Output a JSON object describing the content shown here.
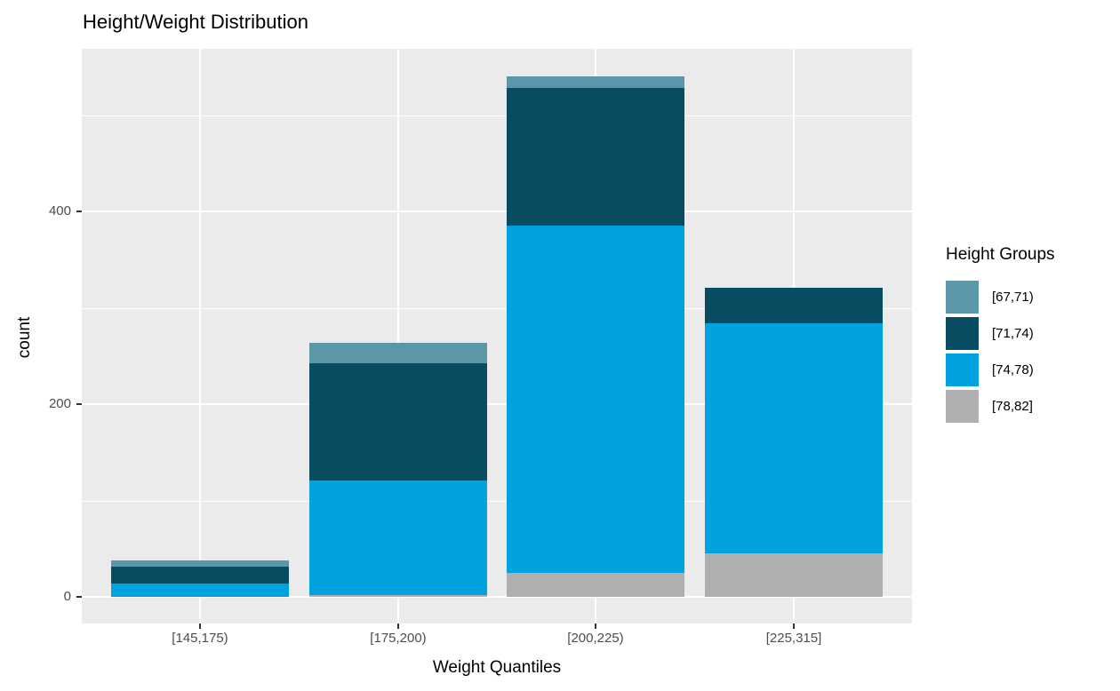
{
  "chart_data": {
    "type": "bar",
    "stacked": true,
    "title": "Height/Weight Distribution",
    "xlabel": "Weight Quantiles",
    "ylabel": "count",
    "categories": [
      "[145,175)",
      "[175,200)",
      "[200,225)",
      "[225,315]"
    ],
    "series": [
      {
        "name": "[67,71)",
        "color": "#5C96A9",
        "values": [
          7,
          22,
          12,
          0
        ]
      },
      {
        "name": "[71,74)",
        "color": "#074C60",
        "values": [
          17,
          121,
          143,
          37
        ]
      },
      {
        "name": "[74,78)",
        "color": "#00A3E0",
        "values": [
          14,
          119,
          360,
          239
        ]
      },
      {
        "name": "[78,82]",
        "color": "#AFAFAF",
        "values": [
          0,
          2,
          25,
          45
        ]
      }
    ],
    "stack_order_bottom_to_top": [
      "[78,82]",
      "[74,78)",
      "[71,74)",
      "[67,71)"
    ],
    "totals_per_category": [
      38,
      264,
      540,
      321
    ],
    "legend": {
      "title": "Height Groups",
      "position": "right"
    },
    "y_axis": {
      "ticks": [
        0,
        200,
        400
      ],
      "minor_gridlines": [
        100,
        300,
        500
      ],
      "ylim": [
        0,
        540
      ]
    },
    "grid": true,
    "panel_background": "#EBEBEB",
    "grid_color": "#FFFFFF",
    "tick_label_color": "#4D4D4D",
    "tick_mark_color": "#333333"
  }
}
